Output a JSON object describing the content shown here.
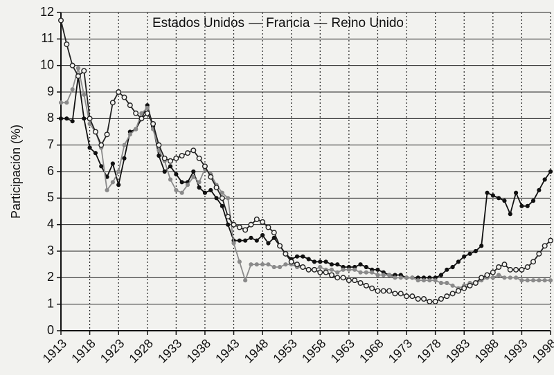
{
  "chart_data": {
    "type": "line",
    "y_label": "Participación (%)",
    "legend_separator": "—",
    "x": [
      1913,
      1914,
      1915,
      1916,
      1917,
      1918,
      1919,
      1920,
      1921,
      1922,
      1923,
      1924,
      1925,
      1926,
      1927,
      1928,
      1929,
      1930,
      1931,
      1932,
      1933,
      1934,
      1935,
      1936,
      1937,
      1938,
      1939,
      1940,
      1941,
      1942,
      1943,
      1944,
      1945,
      1946,
      1947,
      1948,
      1949,
      1950,
      1951,
      1952,
      1953,
      1954,
      1955,
      1956,
      1957,
      1958,
      1959,
      1960,
      1961,
      1962,
      1963,
      1964,
      1965,
      1966,
      1967,
      1968,
      1969,
      1970,
      1971,
      1972,
      1973,
      1974,
      1975,
      1976,
      1977,
      1978,
      1979,
      1980,
      1981,
      1982,
      1983,
      1984,
      1985,
      1986,
      1987,
      1988,
      1989,
      1990,
      1991,
      1992,
      1993,
      1994,
      1995,
      1996,
      1997,
      1998
    ],
    "series": [
      {
        "name": "Estados Unidos",
        "color": "#111111",
        "marker": "dot",
        "values": [
          8.0,
          8.0,
          7.9,
          9.6,
          8.0,
          6.9,
          6.7,
          6.2,
          5.8,
          6.3,
          5.5,
          6.5,
          7.5,
          7.6,
          8.0,
          8.5,
          7.7,
          6.6,
          6.0,
          6.2,
          5.9,
          5.6,
          5.6,
          6.0,
          5.4,
          5.2,
          5.3,
          5.0,
          4.7,
          4.0,
          3.4,
          3.4,
          3.4,
          3.5,
          3.4,
          3.6,
          3.3,
          3.5,
          3.2,
          2.9,
          2.7,
          2.8,
          2.8,
          2.7,
          2.6,
          2.6,
          2.6,
          2.5,
          2.5,
          2.4,
          2.4,
          2.4,
          2.5,
          2.4,
          2.3,
          2.3,
          2.2,
          2.1,
          2.1,
          2.1,
          2.0,
          2.0,
          2.0,
          2.0,
          2.0,
          2.0,
          2.1,
          2.3,
          2.4,
          2.6,
          2.8,
          2.9,
          3.0,
          3.2,
          5.2,
          5.1,
          5.0,
          4.9,
          4.4,
          5.2,
          4.7,
          4.7,
          4.9,
          5.3,
          5.7,
          6.0
        ]
      },
      {
        "name": "Francia",
        "color": "#8a8a8a",
        "marker": "dot",
        "values": [
          8.6,
          8.6,
          9.1,
          9.9,
          8.9,
          7.8,
          7.5,
          6.9,
          5.3,
          5.6,
          6.0,
          7.0,
          7.4,
          7.6,
          8.2,
          8.4,
          7.6,
          6.8,
          6.4,
          5.7,
          5.3,
          5.2,
          5.5,
          5.8,
          5.6,
          6.1,
          5.9,
          5.5,
          5.2,
          5.0,
          3.3,
          2.6,
          1.9,
          2.5,
          2.5,
          2.5,
          2.5,
          2.4,
          2.4,
          2.5,
          2.5,
          2.4,
          2.4,
          2.3,
          2.3,
          2.4,
          2.3,
          2.3,
          2.2,
          2.3,
          2.3,
          2.3,
          2.2,
          2.2,
          2.2,
          2.1,
          2.1,
          2.1,
          2.0,
          2.0,
          2.0,
          2.0,
          1.9,
          1.9,
          1.9,
          1.9,
          1.8,
          1.8,
          1.7,
          1.6,
          1.7,
          1.8,
          1.8,
          1.9,
          2.0,
          2.0,
          2.1,
          2.0,
          2.0,
          2.0,
          1.9,
          1.9,
          1.9,
          1.9,
          1.9,
          1.9
        ]
      },
      {
        "name": "Reino Unido",
        "color": "#222222",
        "marker": "circle-open",
        "values": [
          11.7,
          10.8,
          10.0,
          9.6,
          9.8,
          8.0,
          7.5,
          7.0,
          7.4,
          8.6,
          9.0,
          8.8,
          8.5,
          8.2,
          8.0,
          8.2,
          7.8,
          7.0,
          6.5,
          6.4,
          6.5,
          6.6,
          6.7,
          6.8,
          6.5,
          6.2,
          5.8,
          5.4,
          5.0,
          4.3,
          4.0,
          3.9,
          3.8,
          4.0,
          4.2,
          4.1,
          3.9,
          3.7,
          3.2,
          2.9,
          2.6,
          2.5,
          2.4,
          2.3,
          2.3,
          2.2,
          2.2,
          2.1,
          2.0,
          2.0,
          1.9,
          1.9,
          1.8,
          1.7,
          1.6,
          1.5,
          1.5,
          1.5,
          1.4,
          1.4,
          1.3,
          1.3,
          1.2,
          1.2,
          1.1,
          1.1,
          1.2,
          1.3,
          1.4,
          1.5,
          1.6,
          1.7,
          1.8,
          2.0,
          2.1,
          2.2,
          2.4,
          2.5,
          2.3,
          2.3,
          2.3,
          2.4,
          2.6,
          2.9,
          3.2,
          3.4
        ]
      }
    ],
    "xlim": [
      1913,
      1998
    ],
    "xticks": [
      1913,
      1918,
      1923,
      1928,
      1933,
      1938,
      1943,
      1948,
      1953,
      1958,
      1963,
      1968,
      1973,
      1978,
      1983,
      1988,
      1993,
      1998
    ],
    "ylim": [
      0,
      12
    ],
    "yticks": [
      0,
      1,
      2,
      3,
      4,
      5,
      6,
      7,
      8,
      9,
      10,
      11,
      12
    ],
    "grid": true
  }
}
